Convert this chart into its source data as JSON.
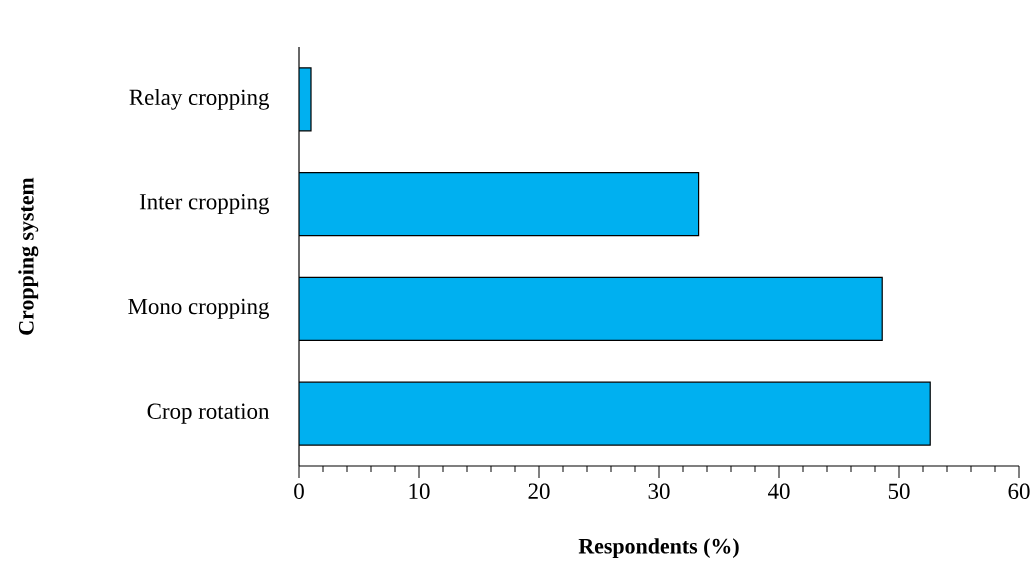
{
  "chart_data": {
    "type": "bar",
    "orientation": "horizontal",
    "xlabel": "Respondents (%)",
    "ylabel": "Cropping system",
    "categories": [
      "Relay cropping",
      "Inter cropping",
      "Mono cropping",
      "Crop rotation"
    ],
    "values": [
      1.0,
      33.3,
      48.6,
      52.6
    ],
    "color": "#00b0f0",
    "xlim": [
      0,
      60
    ],
    "xticks": [
      0,
      10,
      20,
      30,
      40,
      50,
      60
    ],
    "grid": false
  }
}
